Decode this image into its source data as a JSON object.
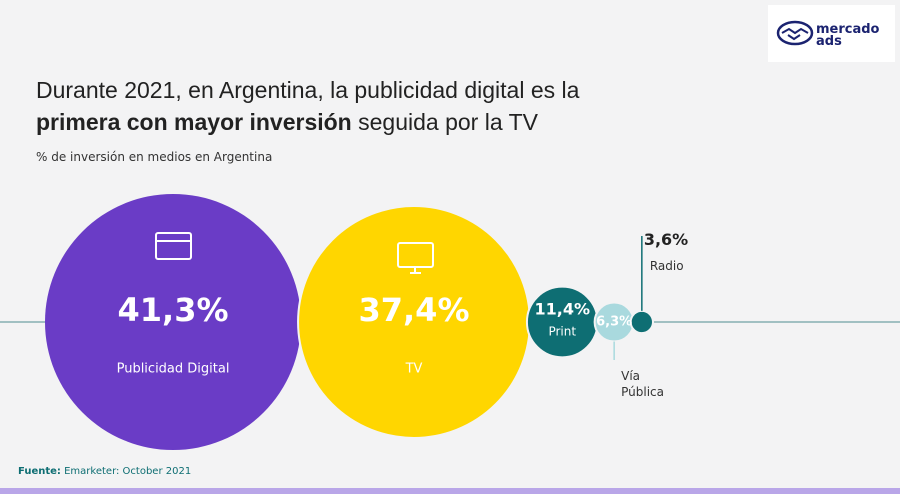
{
  "logo": [
    "mercado",
    "ads"
  ],
  "chart_data": {
    "type": "bubble",
    "title": {
      "regular": "Durante 2021, en Argentina, la publicidad digital es la",
      "bold": "primera con mayor inversión",
      "rest": "seguida por la TV"
    },
    "subtitle": "% de inversión en medios en Argentina",
    "categories": [
      "Publicidad Digital",
      "TV",
      "Print",
      "Vía Pública",
      "Radio"
    ],
    "values": [
      41.3,
      37.4,
      11.4,
      6.3,
      3.6
    ],
    "value_labels": [
      "41,3%",
      "37,4%",
      "11,4%",
      "6,3%",
      "3,6%"
    ],
    "colors": [
      "#6a3cc6",
      "#ffd600",
      "#0e6e73",
      "#a9d9de",
      "#0e6e73"
    ],
    "source": {
      "label": "Fuente:",
      "text": "Emarketer: October 2021"
    }
  }
}
